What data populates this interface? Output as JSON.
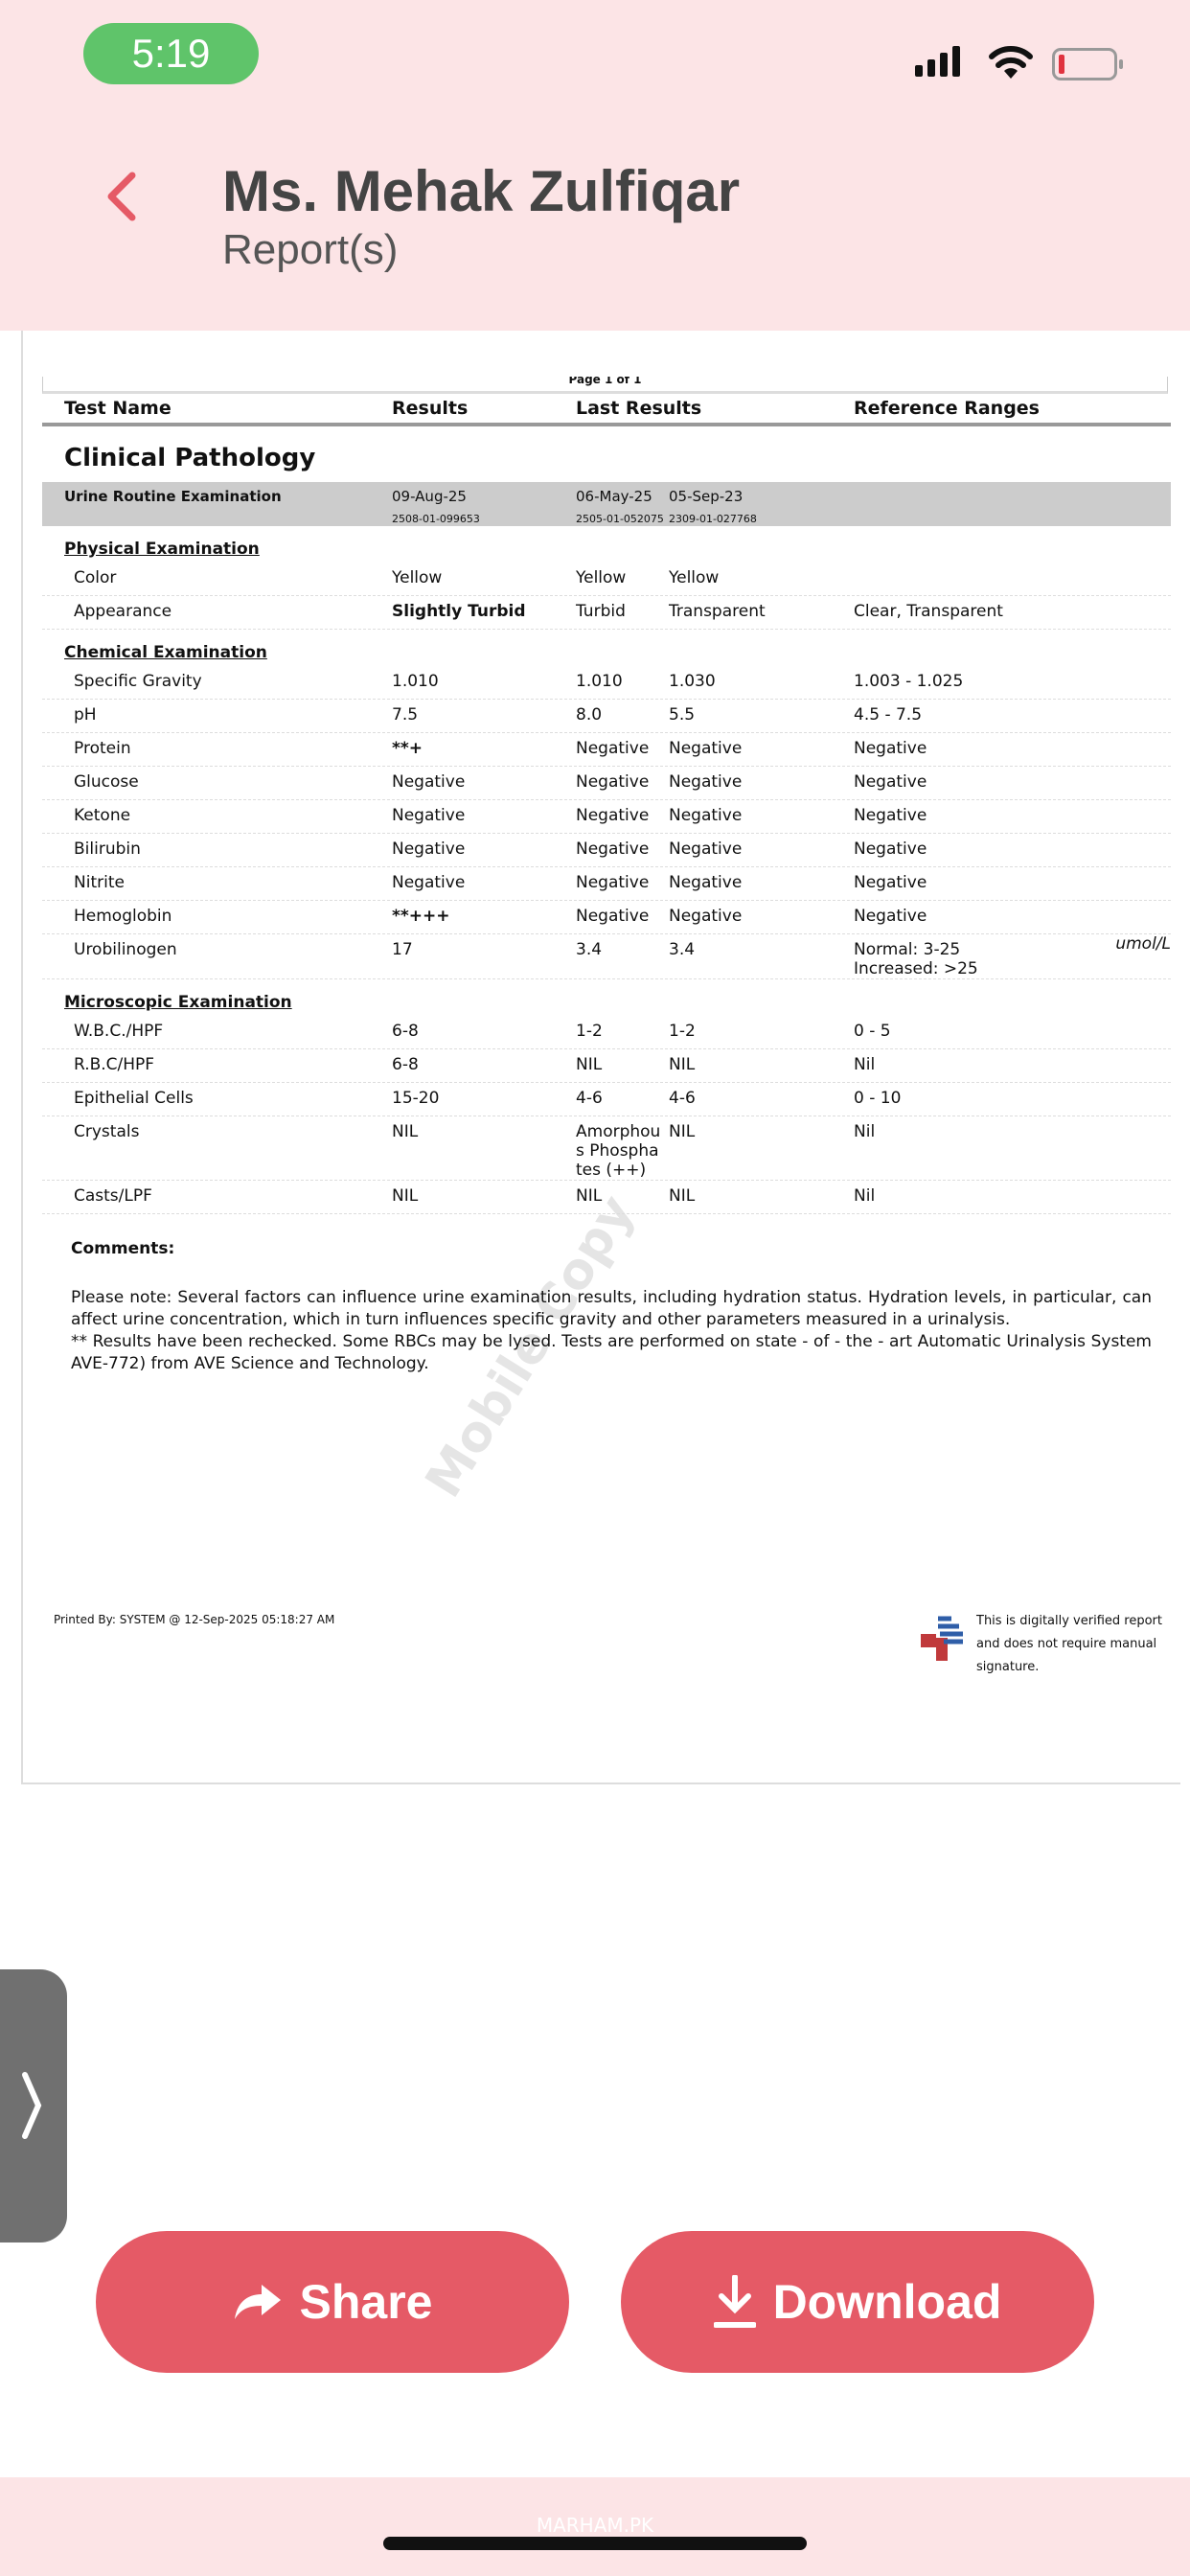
{
  "status": {
    "time": "5:19"
  },
  "header": {
    "title": "Ms. Mehak Zulfiqar",
    "subtitle": "Report(s)"
  },
  "report": {
    "page": "Page 1 of 1",
    "columns": [
      "Test Name",
      "Results",
      "Last Results",
      "Reference Ranges"
    ],
    "department": "Clinical Pathology",
    "test": {
      "name": "Urine Routine Examination",
      "date": "09-Aug-25",
      "id": "2508-01-099653",
      "last1_date": "06-May-25",
      "last1_id": "2505-01-052075",
      "last2_date": "05-Sep-23",
      "last2_id": "2309-01-027768"
    },
    "sections": [
      {
        "title": "Physical Examination",
        "rows": [
          {
            "name": "Color",
            "result": "Yellow",
            "last1": "Yellow",
            "last2": "Yellow",
            "ref": ""
          },
          {
            "name": "Appearance",
            "result": "Slightly Turbid",
            "bold": true,
            "last1": "Turbid",
            "last2": "Transparent",
            "ref": "Clear, Transparent"
          }
        ]
      },
      {
        "title": "Chemical Examination",
        "rows": [
          {
            "name": "Specific Gravity",
            "result": "1.010",
            "last1": "1.010",
            "last2": "1.030",
            "ref": "1.003 - 1.025"
          },
          {
            "name": "pH",
            "result": "7.5",
            "last1": "8.0",
            "last2": "5.5",
            "ref": "4.5 - 7.5"
          },
          {
            "name": "Protein",
            "result": "**+",
            "bold": true,
            "last1": "Negative",
            "last2": "Negative",
            "ref": "Negative"
          },
          {
            "name": "Glucose",
            "result": "Negative",
            "last1": "Negative",
            "last2": "Negative",
            "ref": "Negative"
          },
          {
            "name": "Ketone",
            "result": "Negative",
            "last1": "Negative",
            "last2": "Negative",
            "ref": "Negative"
          },
          {
            "name": "Bilirubin",
            "result": "Negative",
            "last1": "Negative",
            "last2": "Negative",
            "ref": "Negative"
          },
          {
            "name": "Nitrite",
            "result": "Negative",
            "last1": "Negative",
            "last2": "Negative",
            "ref": "Negative"
          },
          {
            "name": "Hemoglobin",
            "result": "**+++",
            "bold": true,
            "last1": "Negative",
            "last2": "Negative",
            "ref": "Negative"
          },
          {
            "name": "Urobilinogen",
            "result": "17",
            "last1": "3.4",
            "last2": "3.4",
            "ref": "Normal: 3-25\nIncreased: >25",
            "unit": "umol/L"
          }
        ]
      },
      {
        "title": "Microscopic Examination",
        "rows": [
          {
            "name": "W.B.C./HPF",
            "result": "6-8",
            "last1": "1-2",
            "last2": "1-2",
            "ref": "0 - 5"
          },
          {
            "name": "R.B.C/HPF",
            "result": "6-8",
            "last1": "NIL",
            "last2": "NIL",
            "ref": "Nil"
          },
          {
            "name": "Epithelial Cells",
            "result": "15-20",
            "last1": "4-6",
            "last2": "4-6",
            "ref": "0 - 10"
          },
          {
            "name": "Crystals",
            "result": "NIL",
            "last1": "Amorphous Phosphates (++)",
            "last2": "NIL",
            "ref": "Nil"
          },
          {
            "name": "Casts/LPF",
            "result": "NIL",
            "last1": "NIL",
            "last2": "NIL",
            "ref": "Nil"
          }
        ]
      }
    ],
    "comments_label": "Comments:",
    "comments": "Please note: Several factors can influence urine examination results, including hydration status. Hydration levels, in particular, can affect urine concentration, which in turn influences specific gravity and other parameters measured in a urinalysis.\n** Results have been rechecked. Some RBCs may be lysed. Tests are performed on state - of - the - art Automatic Urinalysis System AVE-772) from AVE Science and Technology.",
    "watermark": "Mobile Copy",
    "printed_by": "Printed By: SYSTEM @ 12-Sep-2025 05:18:27 AM",
    "verified": "This is digitally verified report and does not require manual signature."
  },
  "actions": {
    "share": "Share",
    "download": "Download"
  },
  "footer": {
    "brand": "MARHAM.PK"
  },
  "colors": {
    "accent": "#e55a66",
    "header_bg": "#fce4e6",
    "time_pill": "#5fc46a"
  }
}
